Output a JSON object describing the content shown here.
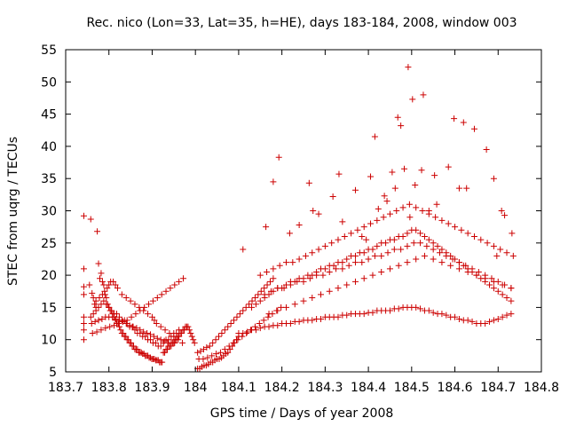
{
  "chart_data": {
    "type": "scatter",
    "title": "Rec. nico (Lon=33, Lat=35, h=HE), days 183-184, 2008, window 003",
    "xlabel": "GPS time / Days of year 2008",
    "ylabel": "STEC from uqrg / TECUs",
    "xlim": [
      183.7,
      184.8
    ],
    "ylim": [
      5,
      55
    ],
    "xticks": [
      183.7,
      183.8,
      183.9,
      184.0,
      184.1,
      184.2,
      184.3,
      184.4,
      184.5,
      184.6,
      184.7,
      184.8
    ],
    "xtick_labels": [
      "183.7",
      "183.8",
      "183.9",
      "184",
      "184.1",
      "184.2",
      "184.3",
      "184.4",
      "184.5",
      "184.6",
      "184.7",
      "184.8"
    ],
    "yticks": [
      5,
      10,
      15,
      20,
      25,
      30,
      35,
      40,
      45,
      50,
      55
    ],
    "ytick_labels": [
      "5",
      "10",
      "15",
      "20",
      "25",
      "30",
      "35",
      "40",
      "45",
      "50",
      "55"
    ],
    "grid": false,
    "marker": "plus",
    "marker_color": "#cc0000",
    "series": [
      {
        "x": [
          183.742,
          183.742,
          183.742,
          183.742,
          183.742,
          183.742,
          183.742,
          183.742,
          183.755,
          183.758,
          183.761,
          183.764,
          183.767,
          183.77,
          183.773,
          183.776,
          183.779,
          183.782,
          183.785,
          183.788,
          183.791,
          183.794,
          183.797,
          183.8,
          183.803,
          183.806,
          183.809,
          183.812,
          183.815,
          183.818,
          183.821,
          183.824,
          183.827,
          183.83,
          183.833,
          183.836,
          183.839,
          183.842,
          183.845,
          183.848,
          183.851,
          183.854,
          183.857,
          183.86,
          183.863,
          183.866,
          183.869,
          183.872,
          183.875,
          183.878,
          183.881,
          183.884,
          183.887,
          183.89,
          183.893,
          183.896,
          183.899,
          183.902,
          183.905,
          183.908,
          183.911,
          183.914,
          183.917,
          183.92,
          183.923,
          183.926,
          183.929,
          183.932,
          183.935,
          183.938,
          183.941,
          183.944,
          183.947,
          183.95,
          183.953,
          183.956,
          183.959,
          183.962,
          183.965,
          183.968,
          183.971,
          183.974,
          183.977,
          183.98,
          183.983,
          183.986,
          183.989,
          183.992,
          183.995,
          183.998,
          183.758,
          183.764,
          183.77,
          183.776,
          183.782,
          183.788,
          183.794,
          183.8,
          183.806,
          183.812,
          183.818,
          183.824,
          183.83,
          183.836,
          183.842,
          183.848,
          183.854,
          183.86,
          183.866,
          183.872,
          183.878,
          183.884,
          183.89,
          183.896,
          183.902,
          183.908,
          183.914,
          183.92,
          183.926,
          183.932,
          183.938,
          183.944,
          183.95,
          183.956,
          183.962,
          183.76,
          183.768,
          183.776,
          183.784,
          183.792,
          183.8,
          183.808,
          183.816,
          183.824,
          183.832,
          183.84,
          183.848,
          183.856,
          183.864,
          183.872,
          183.88,
          183.888,
          183.896,
          183.904,
          183.912,
          183.92,
          183.928,
          183.936,
          183.944,
          183.952,
          183.762,
          183.772,
          183.782,
          183.792,
          183.802,
          183.812,
          183.822,
          183.832,
          183.842,
          183.852,
          183.862,
          183.872,
          183.882,
          183.892,
          183.902,
          183.912,
          183.922,
          183.932,
          183.942,
          183.952,
          183.962,
          183.972,
          183.77,
          183.778,
          183.785,
          183.79,
          183.796,
          183.8,
          183.804,
          183.81,
          183.815,
          183.82,
          183.83,
          183.84,
          183.85,
          183.86,
          183.87,
          183.88,
          183.89,
          183.9,
          183.905,
          183.91,
          183.92,
          183.93,
          183.94,
          183.95,
          183.96,
          183.97,
          184.005,
          184.01,
          184.015,
          184.02,
          184.025,
          184.03,
          184.035,
          184.04,
          184.045,
          184.05,
          184.055,
          184.06,
          184.065,
          184.07,
          184.075,
          184.08,
          184.085,
          184.09,
          184.095,
          184.1,
          184.005,
          184.012,
          184.019,
          184.026,
          184.033,
          184.04,
          184.047,
          184.054,
          184.061,
          184.068,
          184.075,
          184.082,
          184.089,
          184.096,
          184.103,
          184.11,
          184.117,
          184.124,
          184.131,
          184.138,
          184.145,
          184.152,
          184.159,
          184.166,
          184.173,
          184.18,
          184.008,
          184.018,
          184.028,
          184.038,
          184.048,
          184.058,
          184.068,
          184.078,
          184.088,
          184.098,
          184.108,
          184.118,
          184.128,
          184.138,
          184.148,
          184.158,
          184.168,
          184.178,
          184.188,
          184.198,
          184.1,
          184.11,
          184.12,
          184.13,
          184.14,
          184.15,
          184.16,
          184.17,
          184.18,
          184.19,
          184.2,
          184.21,
          184.22,
          184.23,
          184.24,
          184.25,
          184.26,
          184.27,
          184.28,
          184.29,
          184.3,
          184.31,
          184.32,
          184.33,
          184.34,
          184.35,
          184.36,
          184.37,
          184.38,
          184.39,
          184.4,
          184.41,
          184.42,
          184.43,
          184.44,
          184.45,
          184.46,
          184.47,
          184.48,
          184.49,
          184.5,
          184.51,
          184.52,
          184.53,
          184.54,
          184.55,
          184.56,
          184.57,
          184.58,
          184.59,
          184.6,
          184.61,
          184.62,
          184.63,
          184.64,
          184.65,
          184.66,
          184.67,
          184.68,
          184.69,
          184.7,
          184.71,
          184.72,
          184.73,
          184.13,
          184.14,
          184.15,
          184.16,
          184.17,
          184.18,
          184.19,
          184.2,
          184.21,
          184.22,
          184.23,
          184.24,
          184.25,
          184.26,
          184.27,
          184.28,
          184.29,
          184.3,
          184.31,
          184.32,
          184.33,
          184.34,
          184.35,
          184.36,
          184.37,
          184.38,
          184.39,
          184.4,
          184.41,
          184.42,
          184.43,
          184.44,
          184.45,
          184.46,
          184.47,
          184.48,
          184.49,
          184.5,
          184.51,
          184.52,
          184.53,
          184.54,
          184.55,
          184.56,
          184.57,
          184.58,
          184.59,
          184.6,
          184.61,
          184.62,
          184.63,
          184.64,
          184.65,
          184.66,
          184.67,
          184.68,
          184.69,
          184.7,
          184.71,
          184.72,
          184.73,
          184.15,
          184.165,
          184.18,
          184.195,
          184.21,
          184.225,
          184.24,
          184.255,
          184.27,
          184.285,
          184.3,
          184.315,
          184.33,
          184.345,
          184.36,
          184.375,
          184.39,
          184.405,
          184.42,
          184.435,
          184.45,
          184.465,
          184.48,
          184.495,
          184.51,
          184.525,
          184.54,
          184.555,
          184.57,
          184.585,
          184.6,
          184.615,
          184.63,
          184.645,
          184.66,
          184.675,
          184.69,
          184.705,
          184.72,
          184.735,
          184.16,
          184.175,
          184.19,
          184.205,
          184.22,
          184.235,
          184.25,
          184.265,
          184.28,
          184.295,
          184.31,
          184.325,
          184.34,
          184.355,
          184.37,
          184.385,
          184.4,
          184.415,
          184.43,
          184.445,
          184.46,
          184.475,
          184.49,
          184.505,
          184.52,
          184.535,
          184.55,
          184.565,
          184.58,
          184.595,
          184.61,
          184.625,
          184.64,
          184.655,
          184.67,
          184.685,
          184.7,
          184.715,
          184.73,
          184.17,
          184.19,
          184.21,
          184.23,
          184.25,
          184.27,
          184.29,
          184.31,
          184.33,
          184.35,
          184.37,
          184.39,
          184.41,
          184.43,
          184.45,
          184.47,
          184.49,
          184.51,
          184.53,
          184.55,
          184.57,
          184.59,
          184.61,
          184.63,
          184.65,
          184.67,
          184.69,
          184.71,
          184.73,
          184.11,
          184.163,
          184.18,
          184.193,
          184.218,
          184.24,
          184.263,
          184.272,
          184.285,
          184.318,
          184.332,
          184.34,
          184.37,
          184.385,
          184.395,
          184.405,
          184.415,
          184.423,
          184.437,
          184.443,
          184.455,
          184.462,
          184.468,
          184.475,
          184.483,
          184.492,
          184.496,
          184.502,
          184.508,
          184.523,
          184.527,
          184.54,
          184.553,
          184.558,
          184.585,
          184.598,
          184.61,
          184.62,
          184.627,
          184.645,
          184.673,
          184.69,
          184.697,
          184.708,
          184.715,
          184.732
        ],
        "y": [
          29.2,
          21.0,
          18.2,
          17.0,
          13.5,
          12.5,
          11.5,
          10.0,
          18.5,
          28.7,
          17.2,
          16.5,
          15.5,
          15.0,
          26.8,
          21.8,
          19.5,
          20.3,
          19.0,
          18.5,
          17.0,
          16.5,
          15.5,
          15.0,
          14.5,
          14.5,
          14.0,
          13.5,
          13.0,
          12.5,
          12.5,
          12.0,
          11.5,
          11.0,
          11.0,
          10.5,
          10.5,
          10.0,
          10.0,
          9.5,
          9.5,
          9.0,
          9.0,
          8.5,
          8.5,
          8.5,
          8.0,
          8.0,
          8.0,
          7.8,
          7.8,
          7.5,
          7.5,
          7.5,
          7.2,
          7.2,
          7.0,
          7.0,
          7.0,
          6.8,
          6.8,
          6.8,
          6.5,
          6.5,
          6.5,
          8.0,
          8.0,
          8.5,
          8.5,
          9.0,
          9.0,
          9.0,
          9.5,
          9.5,
          10.0,
          10.0,
          10.5,
          10.5,
          11.0,
          11.0,
          11.5,
          11.5,
          12.0,
          12.0,
          12.0,
          11.5,
          11.0,
          10.5,
          10.0,
          9.5,
          13.5,
          14.0,
          14.5,
          15.0,
          15.5,
          16.0,
          15.5,
          15.0,
          14.5,
          14.0,
          14.0,
          13.5,
          13.0,
          13.0,
          12.5,
          12.0,
          12.0,
          11.5,
          11.0,
          11.0,
          10.5,
          10.5,
          10.0,
          10.0,
          9.5,
          9.5,
          9.0,
          9.0,
          9.5,
          10.0,
          10.0,
          10.5,
          11.0,
          11.0,
          11.5,
          12.5,
          12.8,
          13.0,
          13.2,
          13.5,
          13.5,
          13.5,
          13.2,
          13.0,
          12.8,
          12.5,
          12.2,
          12.0,
          11.8,
          11.5,
          11.2,
          11.0,
          10.8,
          10.5,
          10.2,
          10.0,
          9.8,
          9.5,
          9.5,
          9.5,
          11.0,
          11.2,
          11.5,
          11.8,
          12.0,
          12.2,
          12.5,
          12.8,
          13.0,
          13.5,
          14.0,
          14.5,
          15.0,
          15.5,
          16.0,
          16.5,
          17.0,
          17.5,
          18.0,
          18.5,
          19.0,
          19.5,
          16.0,
          16.5,
          17.0,
          17.5,
          18.0,
          18.5,
          19.0,
          19.0,
          18.5,
          18.0,
          17.0,
          16.5,
          16.0,
          15.5,
          15.0,
          14.5,
          14.0,
          13.5,
          13.0,
          12.5,
          12.0,
          11.5,
          11.0,
          10.5,
          10.0,
          9.5,
          5.5,
          5.5,
          5.8,
          6.0,
          6.0,
          6.2,
          6.5,
          6.5,
          6.8,
          7.0,
          7.0,
          7.2,
          7.5,
          7.8,
          8.0,
          8.5,
          9.0,
          9.5,
          10.0,
          10.5,
          8.0,
          8.2,
          8.5,
          8.8,
          9.0,
          9.5,
          10.0,
          10.5,
          11.0,
          11.5,
          12.0,
          12.5,
          13.0,
          13.5,
          14.0,
          14.5,
          15.0,
          15.5,
          16.0,
          16.5,
          17.0,
          17.5,
          18.0,
          18.5,
          19.0,
          19.5,
          7.0,
          7.0,
          7.2,
          7.5,
          7.8,
          8.0,
          8.5,
          9.0,
          9.5,
          10.0,
          10.5,
          11.0,
          11.5,
          12.0,
          12.5,
          13.0,
          13.5,
          14.0,
          14.5,
          15.0,
          11.0,
          11.0,
          11.2,
          11.5,
          11.5,
          11.8,
          12.0,
          12.0,
          12.2,
          12.2,
          12.5,
          12.5,
          12.5,
          12.8,
          12.8,
          13.0,
          13.0,
          13.0,
          13.2,
          13.2,
          13.5,
          13.5,
          13.5,
          13.5,
          13.8,
          13.8,
          14.0,
          14.0,
          14.0,
          14.0,
          14.2,
          14.2,
          14.5,
          14.5,
          14.5,
          14.5,
          14.8,
          14.8,
          15.0,
          15.0,
          15.0,
          15.0,
          14.8,
          14.5,
          14.5,
          14.2,
          14.0,
          14.0,
          13.8,
          13.5,
          13.5,
          13.2,
          13.0,
          13.0,
          12.8,
          12.5,
          12.5,
          12.5,
          12.8,
          13.0,
          13.2,
          13.5,
          13.8,
          14.0,
          15.0,
          15.5,
          16.0,
          16.5,
          17.0,
          17.5,
          18.0,
          18.0,
          18.5,
          19.0,
          19.0,
          19.5,
          19.5,
          20.0,
          20.0,
          20.5,
          21.0,
          21.0,
          21.5,
          21.5,
          22.0,
          22.0,
          22.5,
          23.0,
          23.0,
          23.5,
          23.5,
          24.0,
          24.0,
          24.5,
          25.0,
          25.0,
          25.5,
          25.5,
          26.0,
          26.0,
          26.5,
          27.0,
          27.0,
          26.5,
          26.0,
          25.5,
          25.0,
          24.5,
          24.0,
          23.5,
          23.0,
          22.5,
          22.0,
          21.5,
          21.0,
          20.5,
          20.0,
          19.5,
          19.0,
          18.5,
          18.0,
          17.5,
          17.0,
          16.5,
          16.0,
          20.0,
          20.5,
          21.0,
          21.5,
          22.0,
          22.0,
          22.5,
          23.0,
          23.5,
          24.0,
          24.5,
          25.0,
          25.5,
          26.0,
          26.5,
          27.0,
          27.5,
          28.0,
          28.5,
          29.0,
          29.5,
          30.0,
          30.5,
          31.0,
          30.5,
          30.0,
          29.5,
          29.0,
          28.5,
          28.0,
          27.5,
          27.0,
          26.5,
          26.0,
          25.5,
          25.0,
          24.5,
          24.0,
          23.5,
          23.0,
          17.0,
          17.5,
          18.0,
          18.0,
          18.5,
          19.0,
          19.0,
          19.5,
          20.0,
          20.0,
          20.5,
          21.0,
          21.0,
          21.5,
          22.0,
          22.0,
          22.5,
          23.0,
          23.0,
          23.5,
          24.0,
          24.0,
          24.5,
          25.0,
          25.0,
          24.5,
          24.0,
          23.5,
          23.0,
          22.5,
          22.0,
          21.5,
          21.0,
          20.5,
          20.0,
          19.5,
          19.0,
          18.5,
          18.0,
          14.0,
          14.5,
          15.0,
          15.5,
          16.0,
          16.5,
          17.0,
          17.5,
          18.0,
          18.5,
          19.0,
          19.5,
          20.0,
          20.5,
          21.0,
          21.5,
          22.0,
          22.5,
          23.0,
          22.5,
          22.0,
          21.5,
          21.0,
          20.5,
          20.0,
          19.5,
          19.0,
          18.5,
          18.0,
          24.0,
          27.5,
          34.5,
          38.3,
          26.5,
          27.8,
          34.3,
          30.0,
          29.5,
          32.2,
          35.7,
          28.3,
          33.2,
          26.0,
          25.5,
          35.3,
          41.5,
          30.3,
          32.3,
          31.5,
          36.0,
          33.5,
          44.5,
          43.2,
          36.5,
          52.3,
          29.0,
          47.3,
          34.0,
          36.3,
          48.0,
          30.0,
          35.5,
          31.0,
          36.8,
          44.3,
          33.5,
          43.7,
          33.5,
          42.7,
          39.5,
          35.0,
          23.0,
          30.0,
          29.3,
          26.5
        ]
      }
    ]
  }
}
